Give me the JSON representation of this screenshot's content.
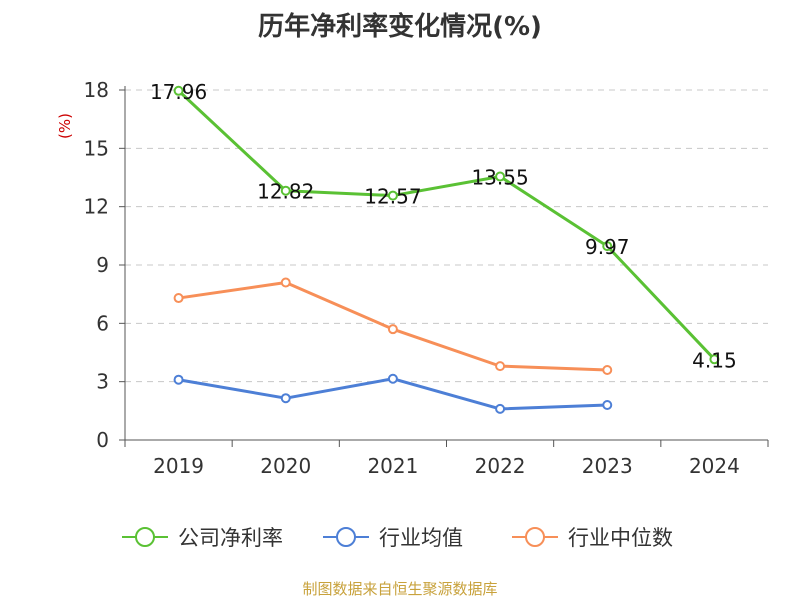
{
  "title": "历年净利率变化情况(%)",
  "footer": "制图数据来自恒生聚源数据库",
  "chart_data": {
    "type": "line",
    "title": "历年净利率变化情况(%)",
    "ylabel": "(%)",
    "xlabel": "",
    "categories": [
      "2019",
      "2020",
      "2021",
      "2022",
      "2023",
      "2024"
    ],
    "ylim": [
      0,
      18
    ],
    "yticks": [
      0,
      3,
      6,
      9,
      12,
      15,
      18
    ],
    "grid": true,
    "legend": "bottom",
    "series": [
      {
        "name": "公司净利率",
        "color": "#5ac134",
        "values": [
          17.96,
          12.82,
          12.57,
          13.55,
          9.97,
          4.15
        ],
        "labels": [
          "17.96",
          "12.82",
          "12.57",
          "13.55",
          "9.97",
          "4.15"
        ]
      },
      {
        "name": "行业均值",
        "color": "#4d7fd6",
        "values": [
          3.1,
          2.15,
          3.15,
          1.6,
          1.8,
          null
        ]
      },
      {
        "name": "行业中位数",
        "color": "#f78f58",
        "values": [
          7.3,
          8.1,
          5.7,
          3.8,
          3.6,
          null
        ]
      }
    ]
  }
}
